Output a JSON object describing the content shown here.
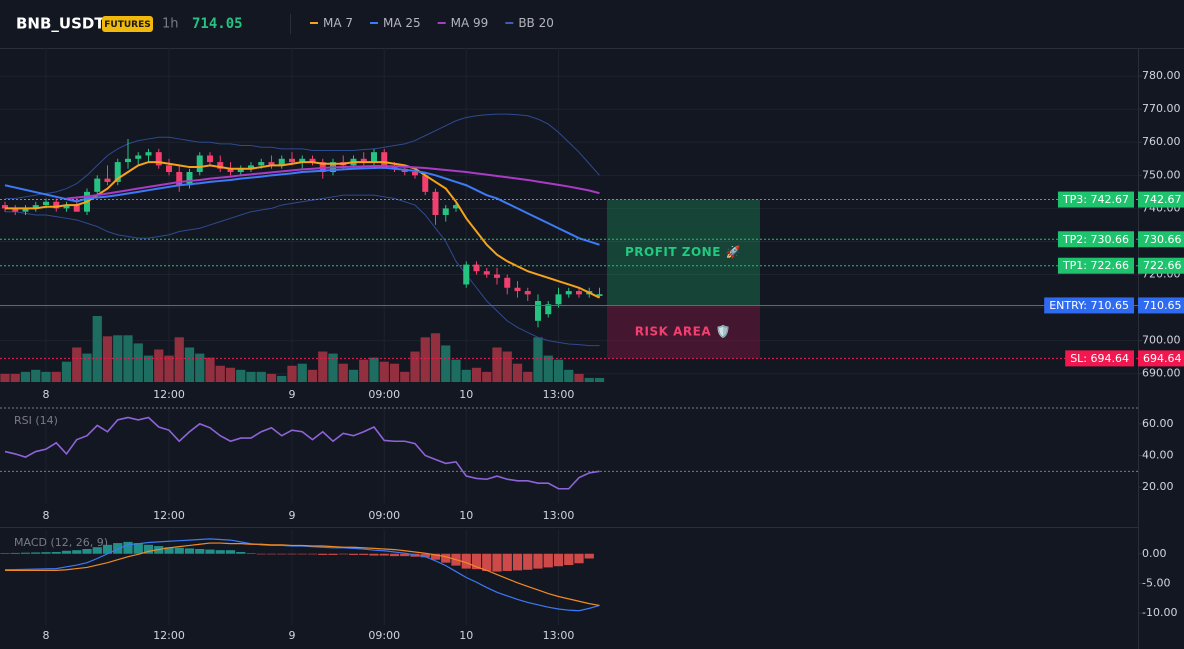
{
  "header": {
    "symbol": "BNB_USDT",
    "badge": "FUTURES",
    "interval": "1h",
    "price": "714.05"
  },
  "chart_data": [
    {
      "type": "candlestick",
      "categories": [
        null,
        null,
        null,
        null,
        "8",
        null,
        null,
        null,
        null,
        null,
        null,
        null,
        null,
        null,
        null,
        null,
        "12:00",
        null,
        null,
        null,
        null,
        null,
        null,
        null,
        null,
        null,
        null,
        null,
        "9",
        null,
        null,
        null,
        null,
        null,
        null,
        null,
        null,
        "09:00",
        null,
        null,
        null,
        null,
        null,
        null,
        null,
        "10",
        null,
        null,
        null,
        null,
        null,
        null,
        null,
        null,
        "13:00",
        null,
        null,
        null,
        null
      ],
      "open": [
        741,
        740,
        739,
        740,
        741,
        742,
        740,
        741,
        739,
        745,
        749,
        748,
        754,
        755,
        756,
        757,
        753,
        751,
        747,
        751,
        756,
        754,
        752,
        751,
        752,
        753,
        754,
        753,
        755,
        754,
        755,
        754,
        751,
        754,
        753,
        755,
        754,
        757,
        753,
        752,
        751,
        750,
        745,
        738,
        740,
        717,
        723,
        721,
        720,
        719,
        716,
        715,
        706,
        708,
        711,
        714,
        715,
        714,
        713.5
      ],
      "high": [
        742,
        741,
        741,
        742,
        743,
        743,
        742,
        743,
        746,
        750,
        753,
        755,
        761,
        757,
        758,
        758,
        755,
        753,
        752,
        757,
        757,
        756,
        754,
        753,
        754,
        755,
        756,
        756,
        757,
        756,
        756,
        755,
        755,
        756,
        756,
        757,
        758,
        758,
        754,
        753,
        752,
        751,
        746,
        741,
        742,
        724,
        724,
        722,
        722,
        720,
        718,
        716,
        714,
        712,
        716,
        716,
        716,
        716,
        716
      ],
      "low": [
        739,
        738,
        738,
        739,
        740,
        739,
        739,
        739,
        738,
        744,
        747,
        747,
        752,
        753,
        754,
        752,
        750,
        745,
        746,
        750,
        753,
        751,
        750,
        750,
        751,
        752,
        752,
        752,
        753,
        752,
        753,
        749,
        750,
        752,
        752,
        753,
        753,
        752,
        751,
        750,
        749,
        744,
        735,
        736,
        739,
        716,
        720,
        719,
        717,
        714,
        713,
        712,
        704,
        707,
        710,
        713,
        713,
        713,
        713
      ],
      "close": [
        740,
        739,
        740,
        741,
        742,
        740,
        741,
        739,
        745,
        749,
        748,
        754,
        755,
        756,
        757,
        753,
        751,
        747,
        751,
        756,
        754,
        752,
        751,
        752,
        753,
        754,
        753,
        755,
        754,
        755,
        754,
        751,
        754,
        753,
        755,
        754,
        757,
        753,
        752,
        751,
        750,
        745,
        738,
        740,
        741,
        723,
        721,
        720,
        719,
        716,
        715,
        714,
        712,
        711,
        714,
        715,
        714,
        715,
        714.05
      ],
      "volume": [
        8,
        8,
        10,
        12,
        10,
        10,
        20,
        34,
        28,
        65,
        45,
        46,
        46,
        38,
        26,
        32,
        26,
        44,
        34,
        28,
        24,
        16,
        14,
        12,
        10,
        10,
        8,
        6,
        16,
        18,
        12,
        30,
        28,
        18,
        12,
        22,
        24,
        20,
        18,
        10,
        30,
        44,
        48,
        36,
        22,
        12,
        14,
        10,
        34,
        30,
        18,
        10,
        44,
        26,
        22,
        12,
        8,
        4,
        4
      ],
      "up_color": "#26c281",
      "down_color": "#f23f6e",
      "volume_up_color": "#1d6e61",
      "volume_down_color": "#92303f",
      "series": [
        {
          "name": "MA 7",
          "color": "#f7a21b",
          "values": [
            740,
            740,
            740,
            740,
            740.5,
            740.5,
            741,
            741,
            742,
            744,
            746,
            749,
            751,
            753,
            754,
            754,
            753.5,
            753,
            752.5,
            752.5,
            753,
            752.5,
            752,
            752,
            752,
            752.5,
            753,
            753,
            753.5,
            754,
            754,
            753.5,
            753.5,
            753.5,
            754,
            754,
            754,
            754,
            753.5,
            753,
            752,
            750,
            748,
            746,
            742,
            737,
            733,
            729,
            726,
            724,
            722.5,
            721,
            720,
            719,
            718,
            717,
            716,
            714.5,
            713
          ]
        },
        {
          "name": "MA 25",
          "color": "#3d7af5",
          "values": [
            747,
            746.3,
            745.6,
            744.9,
            744.2,
            743.5,
            742.8,
            742.1,
            743,
            743.3,
            743.6,
            744,
            744.5,
            745,
            745.5,
            746,
            746.5,
            747,
            747.3,
            747.6,
            748,
            748.3,
            748.6,
            749,
            749.3,
            749.6,
            750,
            750.3,
            750.6,
            751,
            751.2,
            751.4,
            751.6,
            751.8,
            752,
            752.1,
            752.2,
            752.3,
            752,
            751.7,
            751.3,
            750.8,
            750,
            749,
            748,
            747,
            745.5,
            744,
            743,
            741.5,
            740,
            738.5,
            737,
            735.5,
            734,
            732.5,
            731,
            730,
            729
          ]
        },
        {
          "name": "MA 99",
          "color": "#a93bc4",
          "values": [
            null,
            null,
            null,
            null,
            null,
            null,
            743,
            743.3,
            743.6,
            744,
            744.5,
            745,
            745.5,
            746,
            746.5,
            747,
            747.5,
            748,
            748.3,
            748.6,
            749,
            749.3,
            749.6,
            750,
            750.3,
            750.6,
            750.9,
            751.2,
            751.5,
            751.8,
            752,
            752.2,
            752.4,
            752.5,
            752.6,
            752.7,
            752.8,
            752.8,
            752.7,
            752.6,
            752.4,
            752.2,
            751.9,
            751.6,
            751.3,
            751,
            750.6,
            750.2,
            749.8,
            749.4,
            749,
            748.6,
            748.1,
            747.6,
            747.1,
            746.6,
            746,
            745.4,
            744.6
          ]
        }
      ],
      "bands": {
        "name": "BB 20",
        "color": "#2e4a8f",
        "upper": [
          743,
          743,
          743.5,
          744,
          744.5,
          745,
          746,
          747.5,
          750,
          753,
          756,
          758,
          759.5,
          760.5,
          761,
          761.5,
          761.5,
          761,
          760.5,
          760,
          760,
          759.5,
          759.5,
          759,
          759,
          758.5,
          758.5,
          758,
          758,
          758,
          757.5,
          757.5,
          757.5,
          757.5,
          757.5,
          757.8,
          758,
          758.5,
          759,
          759.5,
          760.5,
          762,
          763.5,
          765,
          766.5,
          767.5,
          768,
          768.3,
          768.5,
          768.5,
          768.3,
          768,
          767,
          765.5,
          763,
          760,
          757,
          753.5,
          750
        ],
        "lower": [
          739,
          739,
          738.5,
          738,
          738,
          737.5,
          737,
          736.5,
          735.5,
          734.5,
          733,
          732,
          731.5,
          731,
          731,
          731.5,
          732,
          733,
          733.5,
          734,
          735,
          736,
          737,
          738,
          739,
          739.5,
          740,
          741,
          741.5,
          742,
          742.5,
          743,
          743.5,
          744,
          744,
          744,
          744,
          743.5,
          743,
          742,
          741,
          738,
          734,
          730,
          724,
          720,
          716,
          712,
          709,
          706,
          704,
          702.5,
          701,
          700,
          699.5,
          699,
          698.8,
          698.5,
          698.5
        ]
      },
      "ylim": [
        687.5,
        788.5
      ],
      "yticks": [
        {
          "value": 780,
          "label": "780.00"
        },
        {
          "value": 770,
          "label": "770.00"
        },
        {
          "value": 760,
          "label": "760.00"
        },
        {
          "value": 750,
          "label": "750.00"
        },
        {
          "value": 740,
          "label": "740.00"
        },
        {
          "value": 730,
          "label": "730.00"
        },
        {
          "value": 720,
          "label": "720.00"
        },
        {
          "value": 710,
          "label": "710.00"
        },
        {
          "value": 700,
          "label": "700.00"
        },
        {
          "value": 690,
          "label": "690.00"
        }
      ],
      "grid": true,
      "levels": [
        {
          "label": "TP3: 742.67",
          "value": 742.67,
          "color": "#1fc26d",
          "style": "dotted"
        },
        {
          "label": "TP2: 730.66",
          "value": 730.66,
          "color": "#1fc26d",
          "style": "dotted"
        },
        {
          "label": "TP1: 722.66",
          "value": 722.66,
          "color": "#1fc26d",
          "style": "dotted"
        },
        {
          "label": "ENTRY: 710.65",
          "value": 710.65,
          "color": "#2f6bf0",
          "style": "solid"
        },
        {
          "label": "SL: 694.64",
          "value": 694.64,
          "color": "#f2184f",
          "style": "dotted"
        }
      ],
      "zones": [
        {
          "label": "PROFIT ZONE 🚀",
          "range": [
            742.67,
            710.65
          ],
          "color": "#1fa866",
          "text_color": "#22c980"
        },
        {
          "label": "RISK AREA 🛡️",
          "range": [
            710.65,
            694.64
          ],
          "color": "#b0174a",
          "text_color": "#f23f6e"
        }
      ]
    },
    {
      "type": "line",
      "title": "RSI (14)",
      "color": "#8e63d8",
      "values": [
        42.5,
        41,
        39,
        42.5,
        44,
        48,
        41,
        50,
        52.5,
        59,
        55,
        62.5,
        64,
        62.5,
        64,
        58,
        56,
        49,
        55,
        60,
        57.5,
        52.5,
        49,
        51,
        51,
        55,
        57.5,
        52.5,
        56,
        55,
        50,
        55,
        49,
        54,
        52.5,
        55,
        58,
        49.5,
        49,
        49,
        47.5,
        40,
        37.5,
        35,
        36,
        27,
        25.5,
        25,
        27,
        25,
        24,
        24,
        22.5,
        22.5,
        19,
        19,
        26,
        29,
        30
      ],
      "ylim": [
        10,
        70
      ],
      "yticks": [
        {
          "value": 60,
          "label": "60.00"
        },
        {
          "value": 40,
          "label": "40.00"
        },
        {
          "value": 20,
          "label": "20.00"
        }
      ],
      "levels": [
        70,
        30
      ]
    },
    {
      "type": "macd",
      "title": "MACD (12, 26, 9)",
      "macd": {
        "color": "#3d7af5",
        "values": [
          -2.7,
          -2.66,
          -2.62,
          -2.58,
          -2.54,
          -2.5,
          -2.2,
          -1.9,
          -1.5,
          -0.8,
          0,
          0.8,
          1.5,
          1.7,
          1.9,
          2.0,
          2.1,
          2.2,
          2.3,
          2.4,
          2.5,
          2.4,
          2.3,
          2.0,
          1.7,
          1.5,
          1.4,
          1.4,
          1.3,
          1.3,
          1.2,
          1.1,
          1.0,
          1.0,
          0.9,
          0.8,
          0.6,
          0.5,
          0.3,
          0.1,
          -0.2,
          -0.5,
          -1.2,
          -2.0,
          -3.0,
          -4.0,
          -4.8,
          -5.7,
          -6.5,
          -7.1,
          -7.7,
          -8.2,
          -8.6,
          -9.0,
          -9.3,
          -9.5,
          -9.6,
          -9.2,
          -8.7
        ]
      },
      "signal": {
        "color": "#f08a24",
        "values": [
          -2.8,
          -2.8,
          -2.8,
          -2.8,
          -2.8,
          -2.8,
          -2.7,
          -2.5,
          -2.3,
          -1.9,
          -1.5,
          -1.0,
          -0.5,
          -0.1,
          0.4,
          0.7,
          1.0,
          1.2,
          1.4,
          1.6,
          1.8,
          1.8,
          1.7,
          1.7,
          1.6,
          1.6,
          1.5,
          1.5,
          1.4,
          1.4,
          1.3,
          1.3,
          1.2,
          1.1,
          1.1,
          1.0,
          0.9,
          0.8,
          0.7,
          0.5,
          0.3,
          0.1,
          -0.2,
          -0.5,
          -1.0,
          -1.5,
          -2.2,
          -2.8,
          -3.5,
          -4.2,
          -4.9,
          -5.5,
          -6.1,
          -6.7,
          -7.2,
          -7.6,
          -8.0,
          -8.4,
          -8.7
        ]
      },
      "histogram": {
        "up_color": "#26a69a",
        "down_color": "#ef5350",
        "values": [
          0.1,
          0.14,
          0.18,
          0.22,
          0.26,
          0.3,
          0.5,
          0.6,
          0.8,
          1.1,
          1.5,
          1.8,
          2.0,
          1.8,
          1.5,
          1.3,
          1.1,
          1.0,
          0.9,
          0.8,
          0.7,
          0.6,
          0.6,
          0.3,
          0.1,
          -0.1,
          -0.1,
          -0.1,
          -0.1,
          -0.1,
          -0.1,
          -0.2,
          -0.2,
          -0.1,
          -0.2,
          -0.2,
          -0.3,
          -0.3,
          -0.4,
          -0.4,
          -0.5,
          -0.6,
          -1.0,
          -1.5,
          -2.0,
          -2.5,
          -2.6,
          -2.9,
          -3.0,
          -2.9,
          -2.8,
          -2.7,
          -2.5,
          -2.3,
          -2.1,
          -1.9,
          -1.6,
          -0.8,
          0
        ]
      },
      "ylim": [
        -12,
        4
      ],
      "yticks": [
        {
          "value": 0,
          "label": "0.00"
        },
        {
          "value": -5,
          "label": "-5.00"
        },
        {
          "value": -10,
          "label": "-10.00"
        }
      ]
    }
  ]
}
